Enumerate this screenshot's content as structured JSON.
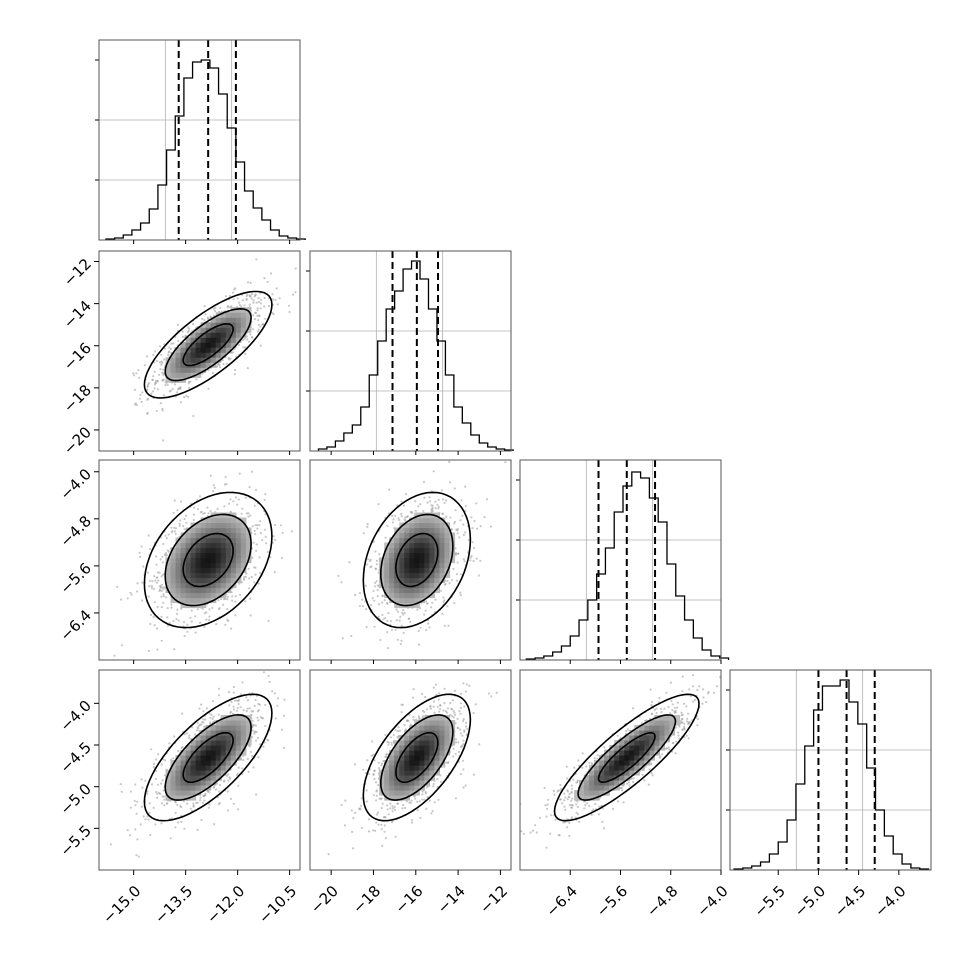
{
  "chart_data": [
    {
      "type": "histogram",
      "panel": "diag-0",
      "xlim": [
        -16,
        -10.2
      ],
      "ylim": [
        0,
        1.0
      ],
      "bins_start": -15.8,
      "bin_width": 0.25,
      "counts": [
        0.005,
        0.01,
        0.025,
        0.05,
        0.085,
        0.155,
        0.275,
        0.45,
        0.62,
        0.81,
        0.89,
        0.9,
        0.86,
        0.73,
        0.56,
        0.39,
        0.245,
        0.16,
        0.1,
        0.05,
        0.02,
        0.01,
        0.005
      ],
      "quantiles": [
        -13.7,
        -12.85,
        -12.05
      ],
      "grid": true
    },
    {
      "type": "histogram",
      "panel": "diag-1",
      "xlim": [
        -21,
        -11.5
      ],
      "ylim": [
        0,
        1.0
      ],
      "bins_start": -20.6,
      "bin_width": 0.4,
      "counts": [
        0.01,
        0.02,
        0.05,
        0.09,
        0.13,
        0.22,
        0.38,
        0.55,
        0.71,
        0.8,
        0.91,
        0.95,
        0.86,
        0.71,
        0.55,
        0.38,
        0.22,
        0.14,
        0.08,
        0.04,
        0.02,
        0.01,
        0.005
      ],
      "quantiles": [
        -17.1,
        -15.95,
        -14.95
      ],
      "grid": true
    },
    {
      "type": "histogram",
      "panel": "diag-2",
      "xlim": [
        -7.2,
        -4.0
      ],
      "ylim": [
        0,
        1.0
      ],
      "bins_start": -7.1,
      "bin_width": 0.14,
      "counts": [
        0.005,
        0.01,
        0.02,
        0.04,
        0.07,
        0.12,
        0.2,
        0.3,
        0.43,
        0.56,
        0.74,
        0.87,
        0.94,
        0.91,
        0.81,
        0.69,
        0.48,
        0.32,
        0.2,
        0.11,
        0.05,
        0.02,
        0.01
      ],
      "quantiles": [
        -5.95,
        -5.5,
        -5.05
      ],
      "grid": true
    },
    {
      "type": "histogram",
      "panel": "diag-3",
      "xlim": [
        -6.1,
        -3.6
      ],
      "ylim": [
        0,
        1.0
      ],
      "bins_start": -6.05,
      "bin_width": 0.11,
      "counts": [
        0.005,
        0.01,
        0.02,
        0.04,
        0.08,
        0.14,
        0.25,
        0.43,
        0.62,
        0.8,
        0.92,
        0.92,
        0.95,
        0.84,
        0.73,
        0.51,
        0.3,
        0.17,
        0.08,
        0.03,
        0.01,
        0.005
      ],
      "quantiles": [
        -5.0,
        -4.65,
        -4.3
      ],
      "grid": true
    },
    {
      "type": "scatter",
      "panel": "off-1-0",
      "xlim": [
        -16,
        -10.2
      ],
      "ylim": [
        -21,
        -11.5
      ],
      "mean": [
        -12.85,
        -15.95
      ],
      "sd": [
        0.8,
        1.1
      ],
      "corr": 0.75
    },
    {
      "type": "scatter",
      "panel": "off-2-0",
      "xlim": [
        -16,
        -10.2
      ],
      "ylim": [
        -7.2,
        -3.8
      ],
      "mean": [
        -12.85,
        -5.5
      ],
      "sd": [
        0.8,
        0.5
      ],
      "corr": 0.35
    },
    {
      "type": "scatter",
      "panel": "off-2-1",
      "xlim": [
        -21,
        -11.5
      ],
      "ylim": [
        -7.2,
        -3.8
      ],
      "mean": [
        -15.95,
        -5.5
      ],
      "sd": [
        1.1,
        0.5
      ],
      "corr": 0.3
    },
    {
      "type": "scatter",
      "panel": "off-3-0",
      "xlim": [
        -16,
        -10.2
      ],
      "ylim": [
        -6.0,
        -3.6
      ],
      "mean": [
        -12.85,
        -4.65
      ],
      "sd": [
        0.8,
        0.33
      ],
      "corr": 0.7
    },
    {
      "type": "scatter",
      "panel": "off-3-1",
      "xlim": [
        -21,
        -11.5
      ],
      "ylim": [
        -6.0,
        -3.6
      ],
      "mean": [
        -15.95,
        -4.65
      ],
      "sd": [
        1.1,
        0.33
      ],
      "corr": 0.6
    },
    {
      "type": "scatter",
      "panel": "off-3-2",
      "xlim": [
        -7.2,
        -4.0
      ],
      "ylim": [
        -6.0,
        -3.6
      ],
      "mean": [
        -5.5,
        -4.65
      ],
      "sd": [
        0.5,
        0.33
      ],
      "corr": 0.85
    }
  ],
  "axes": {
    "x_ticks": [
      [
        "−15.0",
        "−13.5",
        "−12.0",
        "−10.5"
      ],
      [
        "−20",
        "−18",
        "−16",
        "−14",
        "−12"
      ],
      [
        "−6.4",
        "−5.6",
        "−4.8",
        "−4.0"
      ],
      [
        "−5.5",
        "−5.0",
        "−4.5",
        "−4.0"
      ]
    ],
    "y_ticks": [
      [],
      [
        "−12",
        "−14",
        "−16",
        "−18",
        "−20"
      ],
      [
        "−4.0",
        "−4.8",
        "−5.6",
        "−6.4"
      ],
      [
        "−4.0",
        "−4.5",
        "−5.0",
        "−5.5"
      ]
    ]
  },
  "colors": {
    "line": "#000000",
    "points": "#9a9a9a",
    "frame": "#555555",
    "grid": "#b0b0b0"
  }
}
